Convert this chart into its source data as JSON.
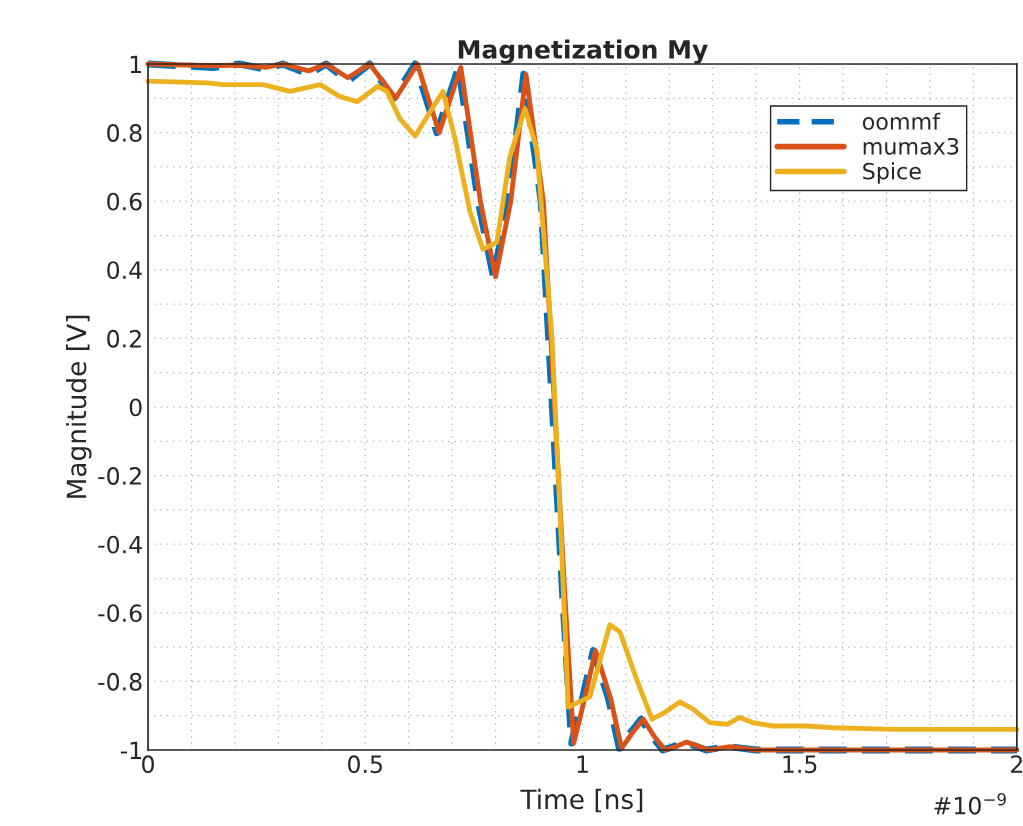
{
  "chart_data": {
    "type": "line",
    "title": "Magnetization My",
    "xlabel": "Time [ns]",
    "ylabel": "Magnitude [V]",
    "xlim": [
      0,
      2
    ],
    "xticks": [
      0,
      0.5,
      1,
      1.5,
      2
    ],
    "ylim": [
      -1,
      1
    ],
    "yticks": [
      -1,
      -0.8,
      -0.6,
      -0.4,
      -0.2,
      0,
      0.2,
      0.4,
      0.6,
      0.8,
      1
    ],
    "grid": true,
    "legend": "top right",
    "annotations": [
      "#10$^{−9}$"
    ],
    "series": [
      {
        "name": "oommf",
        "color": "#0072bd",
        "line_style": "dashed",
        "x": [
          0,
          0.15,
          0.21,
          0.27,
          0.31,
          0.37,
          0.41,
          0.46,
          0.51,
          0.565,
          0.615,
          0.665,
          0.715,
          0.76,
          0.795,
          0.83,
          0.865,
          0.905,
          0.93,
          0.955,
          0.975,
          1.0,
          1.025,
          1.06,
          1.085,
          1.11,
          1.135,
          1.16,
          1.185,
          1.21,
          1.235,
          1.285,
          1.335,
          1.4,
          1.6,
          1.8,
          2.0
        ],
        "values": [
          1.0,
          0.99,
          1.0,
          0.985,
          1.0,
          0.97,
          1.0,
          0.95,
          1.0,
          0.9,
          1.0,
          0.8,
          0.99,
          0.6,
          0.38,
          0.6,
          0.97,
          0.6,
          0.02,
          -0.56,
          -0.98,
          -0.85,
          -0.71,
          -0.85,
          -0.995,
          -0.95,
          -0.91,
          -0.96,
          -1.0,
          -0.99,
          -0.977,
          -1.0,
          -0.99,
          -1.0,
          -1.0,
          -1.0,
          -1.0
        ]
      },
      {
        "name": "mumax3",
        "color": "#d95319",
        "line_style": "solid",
        "x": [
          0,
          0.15,
          0.21,
          0.27,
          0.31,
          0.37,
          0.41,
          0.46,
          0.51,
          0.57,
          0.62,
          0.67,
          0.72,
          0.765,
          0.8,
          0.835,
          0.87,
          0.91,
          0.935,
          0.96,
          0.98,
          1.005,
          1.03,
          1.065,
          1.09,
          1.115,
          1.14,
          1.165,
          1.19,
          1.215,
          1.24,
          1.29,
          1.34,
          1.4,
          1.6,
          1.8,
          2.0
        ],
        "values": [
          1.0,
          0.995,
          0.997,
          0.99,
          1.0,
          0.98,
          1.0,
          0.96,
          1.0,
          0.9,
          1.0,
          0.8,
          0.99,
          0.6,
          0.38,
          0.6,
          0.97,
          0.6,
          0.02,
          -0.56,
          -0.98,
          -0.85,
          -0.71,
          -0.85,
          -0.995,
          -0.95,
          -0.91,
          -0.96,
          -1.0,
          -0.99,
          -0.977,
          -1.0,
          -0.99,
          -1.0,
          -1.0,
          -1.0,
          -1.0
        ]
      },
      {
        "name": "Spice",
        "color": "#edb120",
        "line_style": "solid",
        "x": [
          0,
          0.136,
          0.173,
          0.265,
          0.327,
          0.396,
          0.442,
          0.481,
          0.529,
          0.55,
          0.58,
          0.615,
          0.649,
          0.679,
          0.707,
          0.741,
          0.771,
          0.803,
          0.833,
          0.868,
          0.895,
          0.93,
          0.948,
          0.96,
          0.967,
          1.017,
          1.063,
          1.086,
          1.125,
          1.16,
          1.19,
          1.224,
          1.254,
          1.293,
          1.333,
          1.362,
          1.392,
          1.438,
          1.517,
          1.577,
          1.715,
          2.0
        ],
        "values": [
          0.95,
          0.945,
          0.94,
          0.94,
          0.92,
          0.94,
          0.905,
          0.89,
          0.935,
          0.92,
          0.84,
          0.79,
          0.86,
          0.92,
          0.78,
          0.57,
          0.46,
          0.48,
          0.73,
          0.87,
          0.75,
          0.2,
          -0.3,
          -0.65,
          -0.875,
          -0.845,
          -0.635,
          -0.655,
          -0.795,
          -0.91,
          -0.89,
          -0.86,
          -0.88,
          -0.92,
          -0.925,
          -0.905,
          -0.92,
          -0.93,
          -0.93,
          -0.935,
          -0.94,
          -0.94
        ]
      }
    ]
  }
}
